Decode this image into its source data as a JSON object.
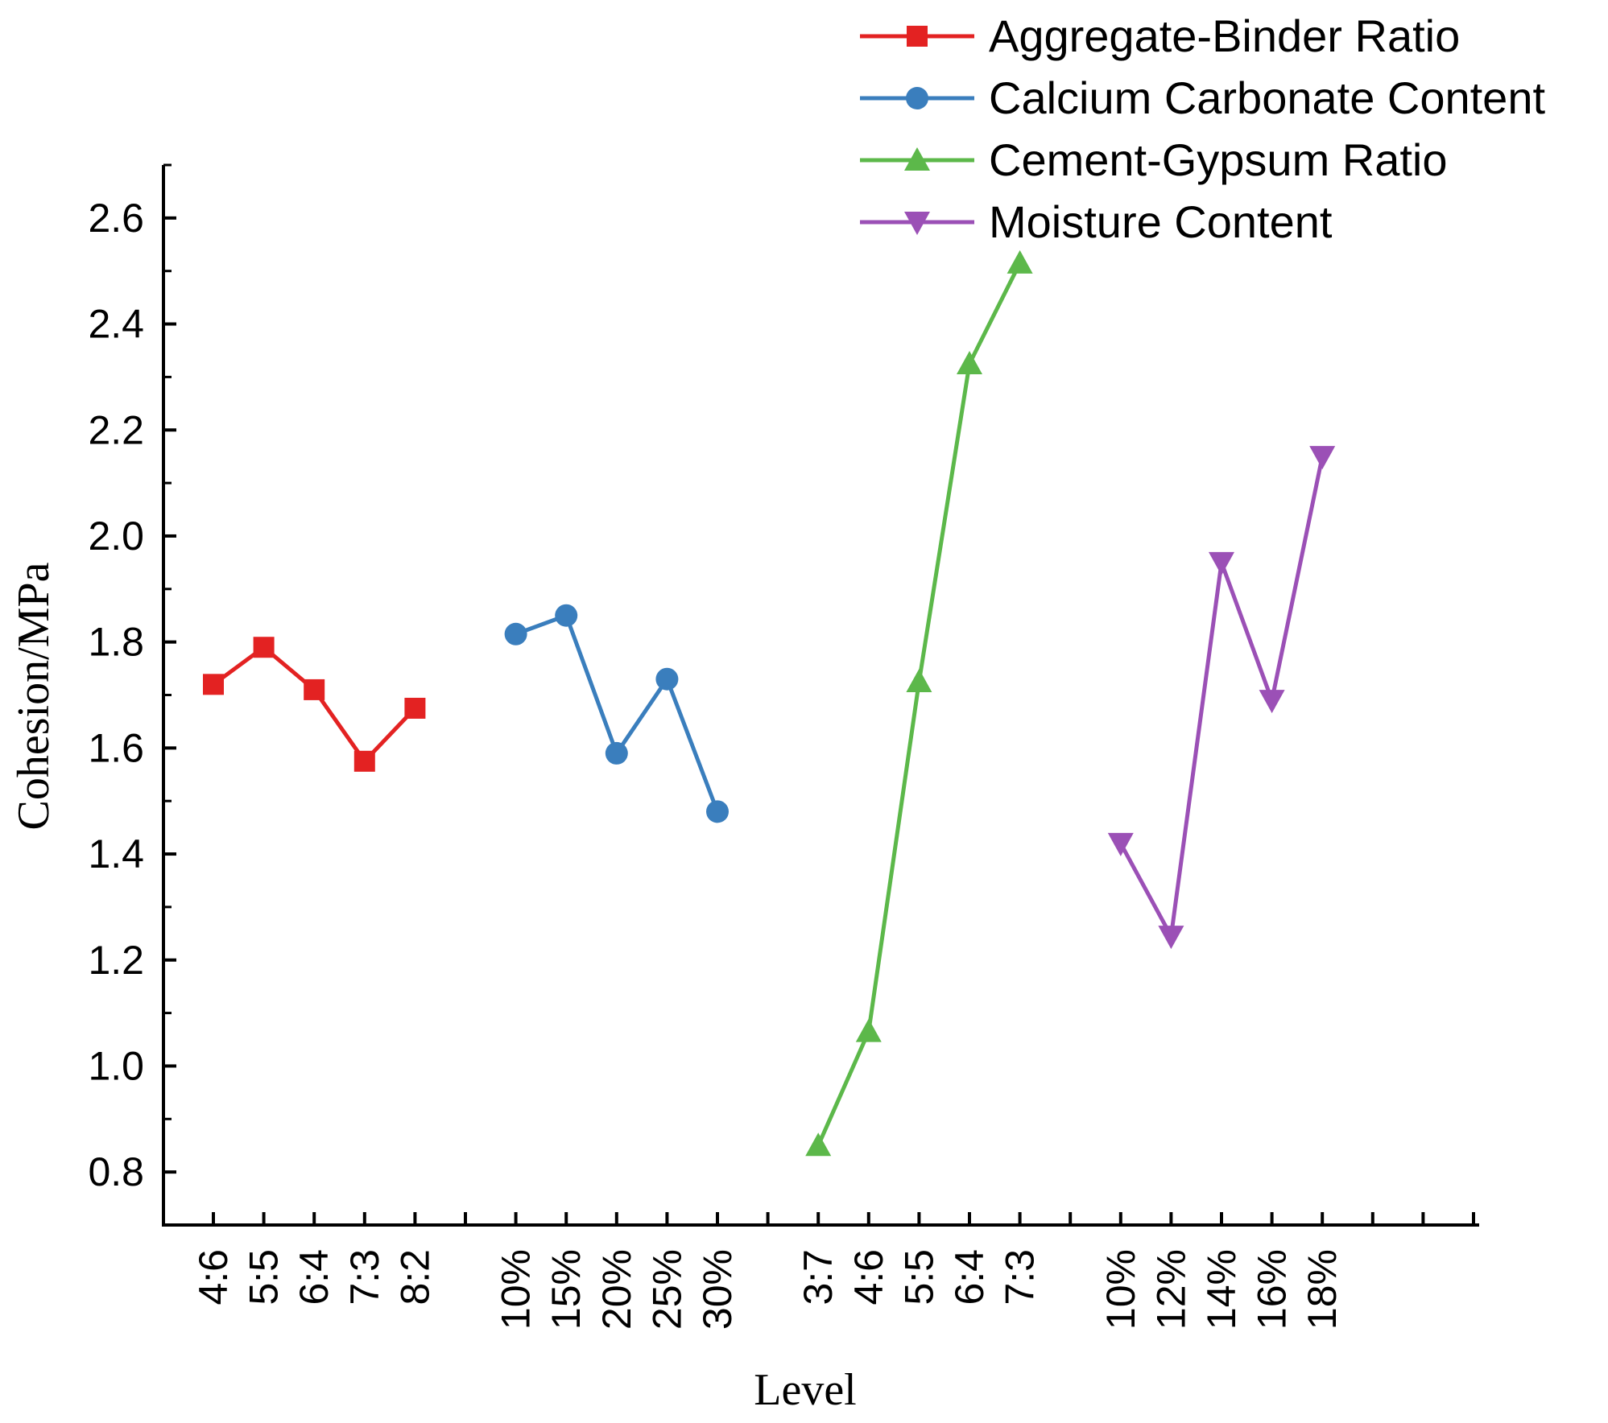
{
  "chart_data": {
    "type": "line",
    "xlabel": "Level",
    "ylabel": "Cohesion/MPa",
    "ylim": [
      0.7,
      2.7
    ],
    "yticks": [
      "0.8",
      "1.0",
      "1.2",
      "1.4",
      "1.6",
      "1.8",
      "2.0",
      "2.2",
      "2.4",
      "2.6"
    ],
    "grid": false,
    "legend_position": "top-right",
    "series": [
      {
        "name": "Aggregate-Binder Ratio",
        "color": "#e32222",
        "marker": "square",
        "categories": [
          "4:6",
          "5:5",
          "6:4",
          "7:3",
          "8:2"
        ],
        "values": [
          1.72,
          1.79,
          1.71,
          1.575,
          1.675
        ]
      },
      {
        "name": "Calcium Carbonate Content",
        "color": "#3a7ebd",
        "marker": "circle",
        "categories": [
          "10%",
          "15%",
          "20%",
          "25%",
          "30%"
        ],
        "values": [
          1.815,
          1.85,
          1.59,
          1.73,
          1.48
        ]
      },
      {
        "name": "Cement-Gypsum Ratio",
        "color": "#5cb84a",
        "marker": "triangle-up",
        "categories": [
          "3:7",
          "4:6",
          "5:5",
          "6:4",
          "7:3"
        ],
        "values": [
          0.85,
          1.065,
          1.725,
          2.325,
          2.515
        ]
      },
      {
        "name": "Moisture Content",
        "color": "#9b50b6",
        "marker": "triangle-down",
        "categories": [
          "10%",
          "12%",
          "14%",
          "16%",
          "18%"
        ],
        "values": [
          1.42,
          1.245,
          1.95,
          1.69,
          2.15
        ]
      }
    ]
  }
}
